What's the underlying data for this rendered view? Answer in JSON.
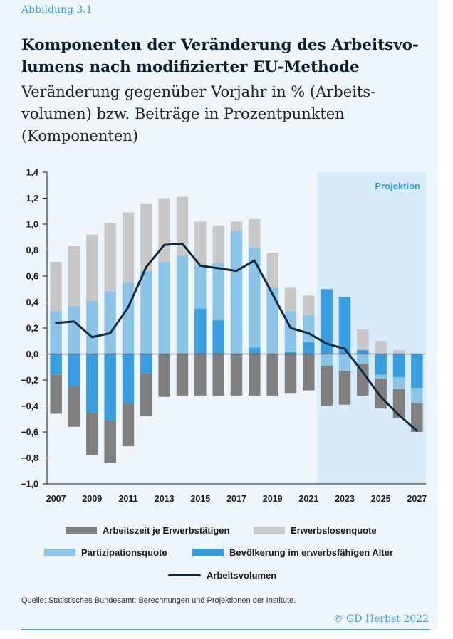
{
  "figure_label": "Abbildung 3.1",
  "title": "Komponenten der Veränderung des Arbeitsvo-lumens nach modifizierter EU-Methode",
  "subtitle": "Veränderung gegenüber Vorjahr in % (Arbeits-volumen) bzw. Beiträge in Prozentpunkten (Komponenten)",
  "legend": {
    "arbeitszeit": "Arbeitszeit je Erwerbstätigen",
    "erwerbslosen": "Erwerbslosenquote",
    "partizipation": "Partizipationsquote",
    "bevoelkerung": "Bevölkerung im erwerbsfähigen Alter",
    "arbeitsvolumen": "Arbeitsvolumen"
  },
  "source": "Quelle: Statistisches Bundesamt; Berechnungen und Projektionen der Institute.",
  "copyright": "© GD Herbst 2022",
  "colors": {
    "panel_bg": "#eef6fc",
    "projection_bg": "#d8ebf8",
    "arbeitszeit": "#7f7f7f",
    "erwerbslosen": "#c8c8c8",
    "partizipation": "#8cc4e8",
    "bevoelkerung": "#3a9fe0",
    "line": "#0f2a3d",
    "accent": "#3a9fd6"
  },
  "chart_data": {
    "type": "bar",
    "stacked": true,
    "categories": [
      "2007",
      "2008",
      "2009",
      "2010",
      "2011",
      "2012",
      "2013",
      "2014",
      "2015",
      "2016",
      "2017",
      "2018",
      "2019",
      "2020",
      "2021",
      "2022",
      "2023",
      "2024",
      "2025",
      "2026",
      "2027"
    ],
    "x_tick_labels": [
      "2007",
      "2009",
      "2011",
      "2013",
      "2015",
      "2017",
      "2019",
      "2021",
      "2023",
      "2025",
      "2027"
    ],
    "y_tick_labels": [
      "1,4",
      "1,2",
      "1,0",
      "0,8",
      "0,6",
      "0,4",
      "0,2",
      "0,0",
      "−0,2",
      "−0,4",
      "−0,6",
      "−0,8",
      "−1,0"
    ],
    "ylim": [
      -1.0,
      1.4
    ],
    "projection_label": "Projektion",
    "projection_start": "2022",
    "series": [
      {
        "key": "bevoelkerung",
        "name": "Bevölkerung im erwerbsfähigen Alter",
        "values": [
          -0.16,
          -0.25,
          -0.45,
          -0.51,
          -0.38,
          -0.15,
          0.0,
          0.0,
          0.35,
          0.26,
          0.0,
          0.05,
          0.0,
          0.02,
          0.09,
          0.5,
          0.44,
          0.03,
          -0.16,
          -0.18,
          -0.26
        ]
      },
      {
        "key": "partizipation",
        "name": "Partizipationsquote",
        "values": [
          0.33,
          0.37,
          0.41,
          0.48,
          0.55,
          0.64,
          0.71,
          0.76,
          0.34,
          0.44,
          0.95,
          0.77,
          0.51,
          0.31,
          0.21,
          -0.09,
          -0.13,
          -0.08,
          -0.03,
          -0.09,
          -0.12
        ]
      },
      {
        "key": "arbeitszeit",
        "name": "Arbeitszeit je Erwerbstätigen",
        "values": [
          -0.3,
          -0.31,
          -0.33,
          -0.33,
          -0.33,
          -0.33,
          -0.33,
          -0.32,
          -0.32,
          -0.32,
          -0.32,
          -0.32,
          -0.32,
          -0.3,
          -0.28,
          -0.31,
          -0.26,
          -0.24,
          -0.23,
          -0.22,
          -0.22
        ]
      },
      {
        "key": "erwerbslosen",
        "name": "Erwerbslosenquote",
        "values": [
          0.38,
          0.46,
          0.51,
          0.53,
          0.54,
          0.52,
          0.49,
          0.45,
          0.33,
          0.29,
          0.07,
          0.22,
          0.27,
          0.18,
          0.15,
          0.0,
          0.0,
          0.16,
          0.1,
          0.03,
          0.0
        ]
      }
    ],
    "line": {
      "key": "arbeitsvolumen",
      "name": "Arbeitsvolumen",
      "values": [
        0.24,
        0.25,
        0.13,
        0.16,
        0.36,
        0.67,
        0.84,
        0.85,
        0.68,
        0.66,
        0.64,
        0.72,
        0.46,
        0.2,
        0.16,
        0.08,
        0.04,
        -0.14,
        -0.33,
        -0.47,
        -0.59
      ]
    },
    "grid": false,
    "legend_position": "bottom"
  }
}
